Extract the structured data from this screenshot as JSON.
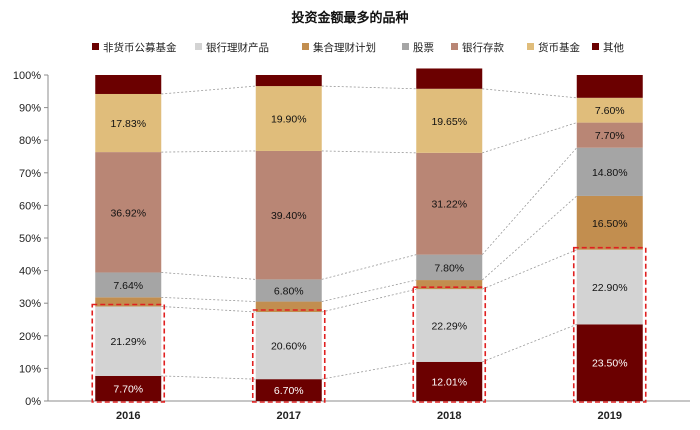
{
  "chart_data": {
    "type": "bar",
    "stacked": true,
    "title": "投资金额最多的品种",
    "categories": [
      "2016",
      "2017",
      "2018",
      "2019"
    ],
    "y_ticks": [
      "0%",
      "10%",
      "20%",
      "30%",
      "40%",
      "50%",
      "60%",
      "70%",
      "80%",
      "90%",
      "100%"
    ],
    "ylim": [
      0,
      100
    ],
    "legend_position": "top",
    "series": [
      {
        "name": "非货币公募基金",
        "color": "#6b0000",
        "values": [
          7.7,
          6.7,
          12.01,
          23.5
        ],
        "labels": [
          "7.70%",
          "6.70%",
          "12.01%",
          "23.50%"
        ],
        "label_color": "#ffffff"
      },
      {
        "name": "银行理财产品",
        "color": "#d3d3d3",
        "values": [
          21.29,
          20.6,
          22.29,
          22.9
        ],
        "labels": [
          "21.29%",
          "20.60%",
          "22.29%",
          "22.90%"
        ],
        "label_color": "#111111"
      },
      {
        "name": "集合理财计划",
        "color": "#c28e4f",
        "values": [
          2.8,
          3.2,
          2.8,
          16.5
        ],
        "labels": [
          "",
          "",
          "",
          "16.50%"
        ],
        "label_color": "#111111"
      },
      {
        "name": "股票",
        "color": "#a5a5a5",
        "values": [
          7.64,
          6.8,
          7.8,
          14.8
        ],
        "labels": [
          "7.64%",
          "6.80%",
          "7.80%",
          "14.80%"
        ],
        "label_color": "#111111"
      },
      {
        "name": "银行存款",
        "color": "#b98675",
        "values": [
          36.92,
          39.4,
          31.22,
          7.7
        ],
        "labels": [
          "36.92%",
          "39.40%",
          "31.22%",
          "7.70%"
        ],
        "label_color": "#111111"
      },
      {
        "name": "货币基金",
        "color": "#e0bd7b",
        "values": [
          17.83,
          19.9,
          19.65,
          7.6
        ],
        "labels": [
          "17.83%",
          "19.90%",
          "19.65%",
          "7.60%"
        ],
        "label_color": "#111111"
      },
      {
        "name": "其他",
        "color": "#6b0000",
        "values": [
          5.82,
          3.4,
          6.23,
          7.0
        ],
        "labels": [
          "",
          "",
          "",
          ""
        ],
        "label_color": "#ffffff"
      }
    ],
    "highlight_series_count": 2,
    "highlight_color": "#e02020",
    "connector_color": "#9a9a9a",
    "grid": false
  }
}
